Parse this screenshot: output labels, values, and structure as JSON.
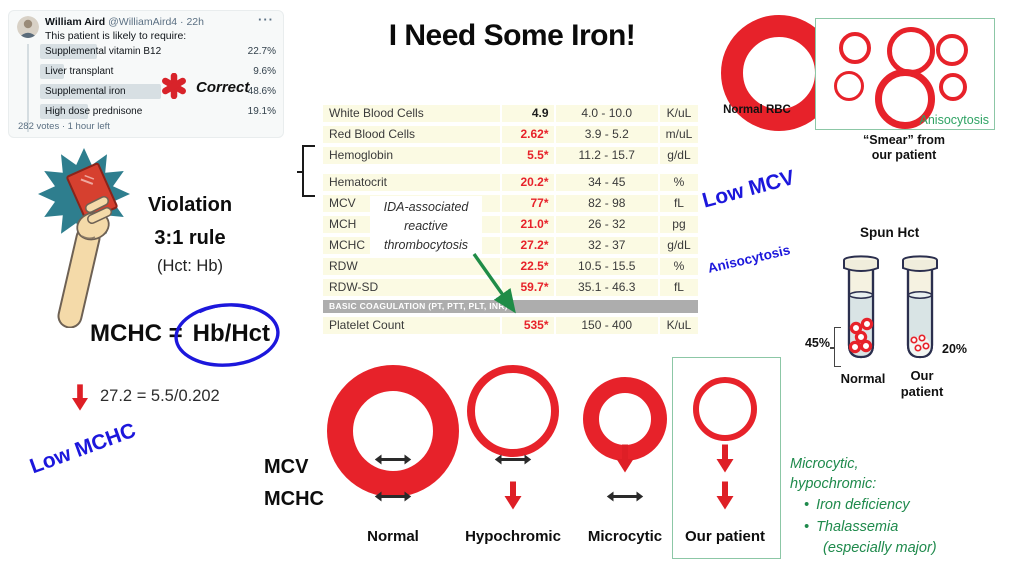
{
  "tweet": {
    "name": "William Aird",
    "handle": "@WilliamAird4",
    "time": "· 22h",
    "more": "···",
    "text": "This patient is likely to require:",
    "options": [
      {
        "label": "Supplemental vitamin B12",
        "pct": "22.7%",
        "share": 22.7
      },
      {
        "label": "Liver transplant",
        "pct": "9.6%",
        "share": 9.6
      },
      {
        "label": "Supplemental iron",
        "pct": "48.6%",
        "share": 48.6
      },
      {
        "label": "High dose prednisone",
        "pct": "19.1%",
        "share": 19.1
      }
    ],
    "footer": "282 votes · 1 hour left"
  },
  "correct": {
    "label": "Correct"
  },
  "title": "I Need Some Iron!",
  "lab_table": {
    "rows": [
      {
        "name": "White Blood Cells",
        "value": "4.9",
        "abnormal": false,
        "range": "4.0 - 10.0",
        "unit": "K/uL"
      },
      {
        "name": "Red Blood Cells",
        "value": "2.62*",
        "abnormal": true,
        "range": "3.9 - 5.2",
        "unit": "m/uL"
      },
      {
        "name": "Hemoglobin",
        "value": "5.5*",
        "abnormal": true,
        "range": "11.2 - 15.7",
        "unit": "g/dL"
      },
      {
        "name": "Hematocrit",
        "value": "20.2*",
        "abnormal": true,
        "range": "34 - 45",
        "unit": "%"
      },
      {
        "name": "MCV",
        "value": "77*",
        "abnormal": true,
        "range": "82 - 98",
        "unit": "fL"
      },
      {
        "name": "MCH",
        "value": "21.0*",
        "abnormal": true,
        "range": "26 - 32",
        "unit": "pg"
      },
      {
        "name": "MCHC",
        "value": "27.2*",
        "abnormal": true,
        "range": "32 - 37",
        "unit": "g/dL"
      },
      {
        "name": "RDW",
        "value": "22.5*",
        "abnormal": true,
        "range": "10.5 - 15.5",
        "unit": "%"
      },
      {
        "name": "RDW-SD",
        "value": "59.7*",
        "abnormal": true,
        "range": "35.1 - 46.3",
        "unit": "fL"
      }
    ],
    "section_header": "BASIC COAGULATION (PT, PTT, PLT, INR)",
    "platelet_row": {
      "name": "Platelet Count",
      "value": "535*",
      "abnormal": true,
      "range": "150 - 400",
      "unit": "K/uL"
    }
  },
  "callout": {
    "line1": "IDA-associated",
    "line2": "reactive",
    "line3": "thrombocytosis"
  },
  "annotations": {
    "low_mcv": "Low MCV",
    "anisocytosis": "Anisocytosis",
    "low_mchc": "Low MCHC"
  },
  "normal_rbc": {
    "label": "Normal RBC"
  },
  "smear": {
    "label": "Anisocytosis",
    "caption1": "“Smear” from",
    "caption2": "our patient"
  },
  "spun_hct": {
    "title": "Spun Hct",
    "normal_pct": "45%",
    "patient_pct": "20%",
    "normal_label": "Normal",
    "patient_label1": "Our",
    "patient_label2": "patient"
  },
  "violation": {
    "line1": "Violation",
    "line2": "3:1 rule",
    "line3": "(Hct: Hb)"
  },
  "equation": {
    "lhs": "MCHC =",
    "rhs": "Hb/Hct",
    "calc": "27.2 = 5.5/0.202"
  },
  "rbc_matrix": {
    "row_labels": [
      "MCV",
      "MCHC"
    ],
    "columns": [
      {
        "label": "Normal",
        "mcv": "unchanged",
        "mchc": "unchanged"
      },
      {
        "label": "Hypochromic",
        "mcv": "unchanged",
        "mchc": "decreased"
      },
      {
        "label": "Microcytic",
        "mcv": "decreased",
        "mchc": "unchanged"
      },
      {
        "label": "Our patient",
        "mcv": "decreased",
        "mchc": "decreased"
      }
    ]
  },
  "green_note": {
    "line1": "Microcytic,",
    "line2": "hypochromic:",
    "bullet1": "Iron deficiency",
    "bullet2a": "Thalassemia",
    "bullet2b": "(especially major)"
  },
  "colors": {
    "red": "#E7222A",
    "blue": "#1C17DC",
    "green_label": "#2FA364",
    "green_text": "#1F8A4C",
    "arrow_green": "#1F8C47",
    "table_row_bg": "#FBFAE3",
    "coag_gray": "#ADADAD",
    "tube_navy": "#2B2F4E"
  }
}
